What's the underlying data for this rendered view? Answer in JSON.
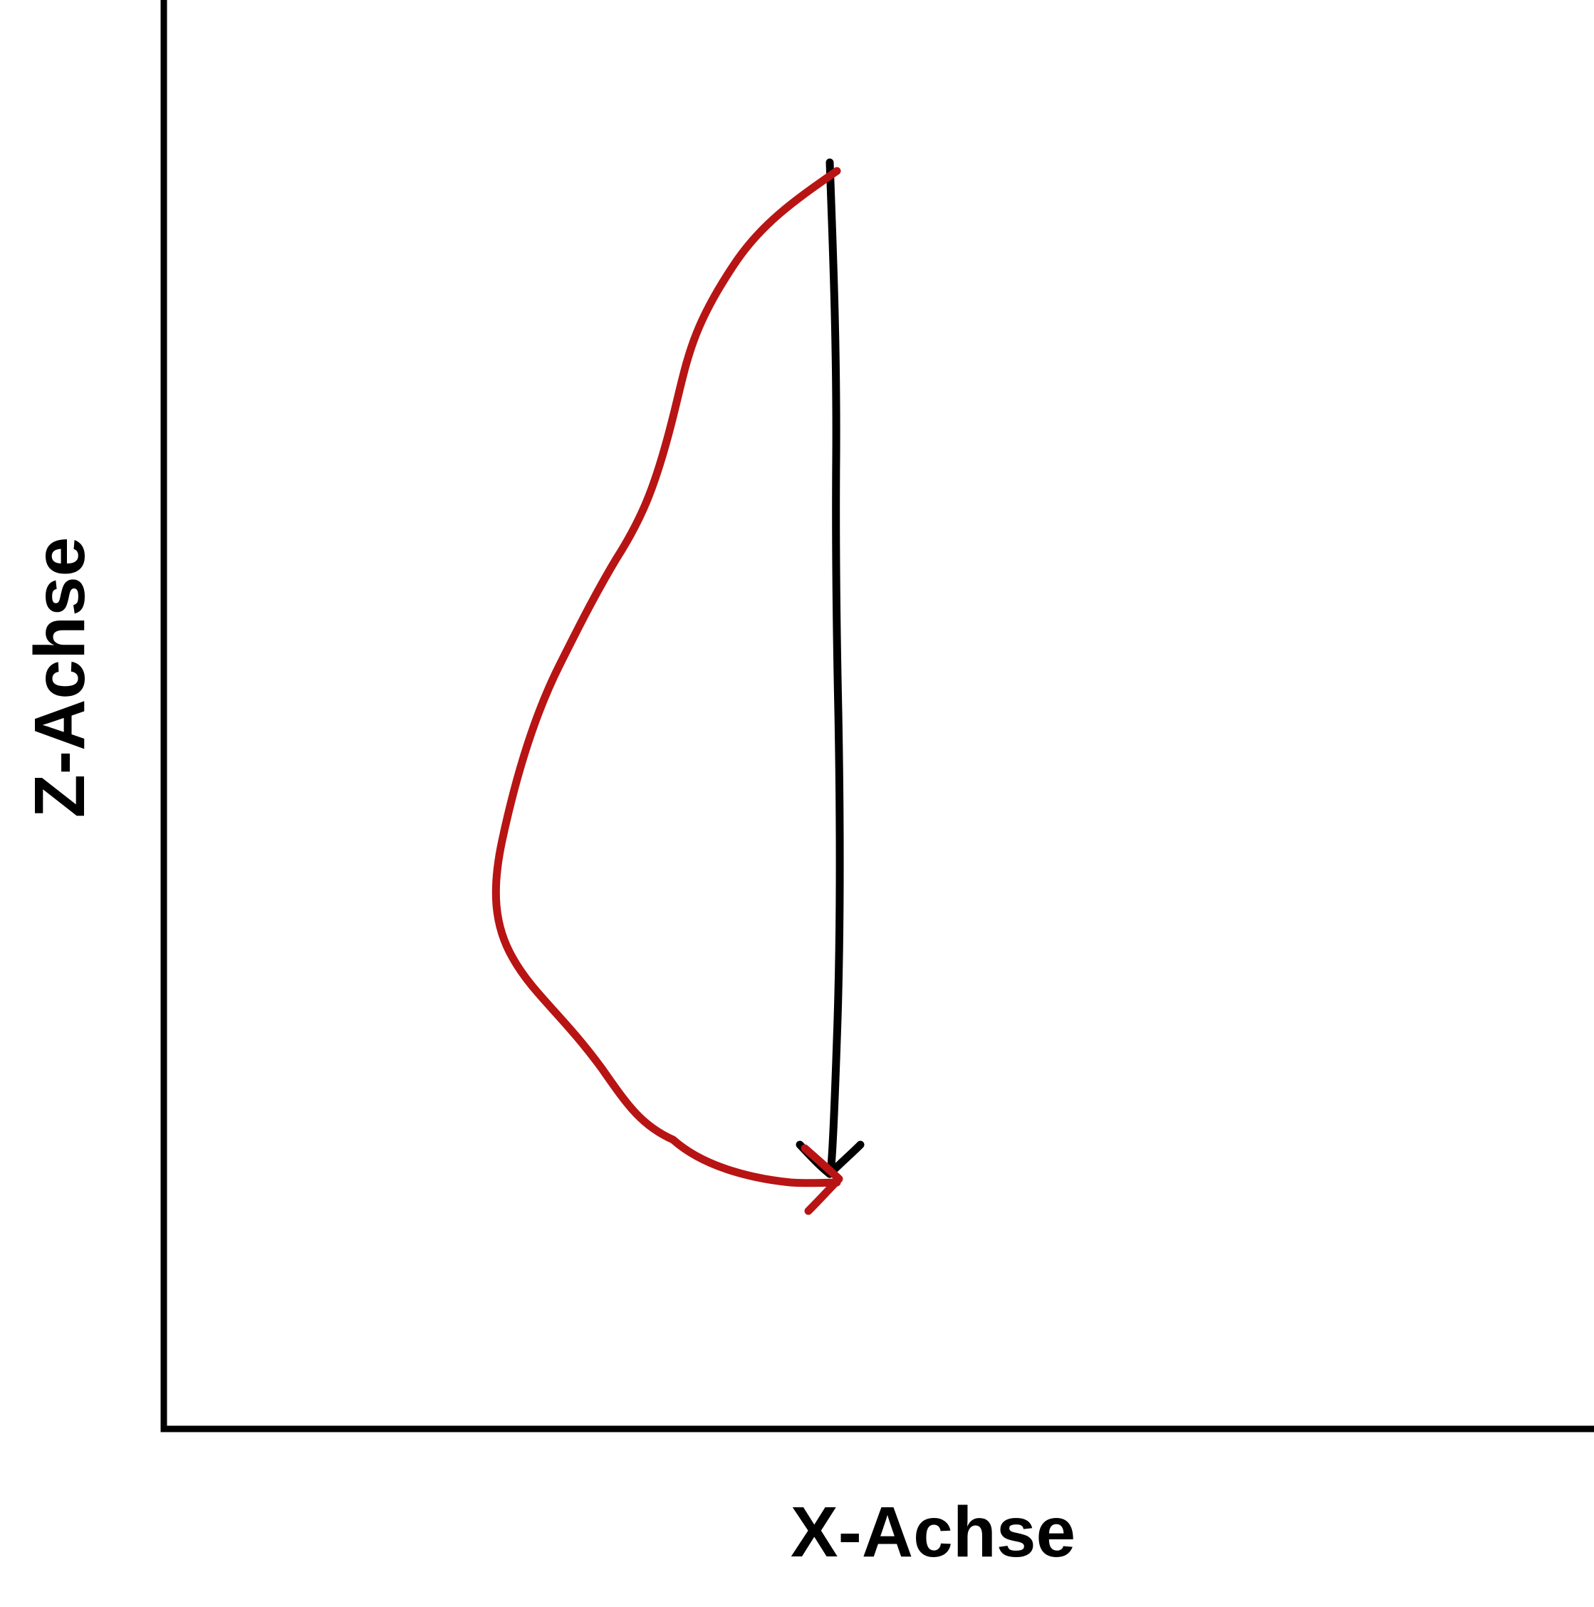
{
  "axes": {
    "x_label": "X-Achse",
    "z_label": "Z-Achse"
  },
  "paths": {
    "straight_path": {
      "color": "#000000"
    },
    "curved_path": {
      "color": "#b81414"
    }
  },
  "colors": {
    "axis": "#000000",
    "background": "#ffffff"
  }
}
